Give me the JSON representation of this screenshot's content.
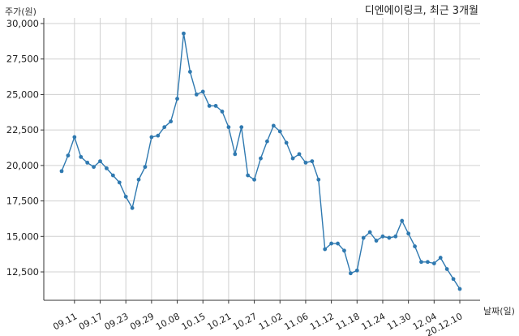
{
  "chart_data": {
    "type": "line",
    "title": "디엔에이링크, 최근 3개월",
    "ylabel": "주가(원)",
    "xlabel": "날짜(일)",
    "ylim": [
      10500,
      30000
    ],
    "yticks": [
      12500,
      15000,
      17500,
      20000,
      22500,
      25000,
      27500,
      30000
    ],
    "ytick_labels": [
      "12,500",
      "15,000",
      "17,500",
      "20,000",
      "22,500",
      "25,000",
      "27,500",
      "30,000"
    ],
    "xticks": [
      {
        "index": 2,
        "label": "09.11"
      },
      {
        "index": 6,
        "label": "09.17"
      },
      {
        "index": 10,
        "label": "09.23"
      },
      {
        "index": 14,
        "label": "09.29"
      },
      {
        "index": 18,
        "label": "10.08"
      },
      {
        "index": 22,
        "label": "10.15"
      },
      {
        "index": 26,
        "label": "10.21"
      },
      {
        "index": 30,
        "label": "10.27"
      },
      {
        "index": 34,
        "label": "11.02"
      },
      {
        "index": 38,
        "label": "11.06"
      },
      {
        "index": 42,
        "label": "11.12"
      },
      {
        "index": 46,
        "label": "11.18"
      },
      {
        "index": 50,
        "label": "11.24"
      },
      {
        "index": 54,
        "label": "11.30"
      },
      {
        "index": 58,
        "label": "12.04"
      },
      {
        "index": 62,
        "label": "20.12.10"
      }
    ],
    "grid": true,
    "series": [
      {
        "color": "#2f79b0",
        "values": [
          19600,
          20700,
          22000,
          20600,
          20200,
          19900,
          20300,
          19800,
          19300,
          18800,
          17800,
          17000,
          19000,
          19900,
          22000,
          22100,
          22700,
          23100,
          24700,
          29300,
          26600,
          25000,
          25200,
          24200,
          24200,
          23800,
          22700,
          20800,
          22700,
          19300,
          19000,
          20500,
          21700,
          22800,
          22400,
          21600,
          20500,
          20800,
          20200,
          20300,
          19000,
          14100,
          14500,
          14500,
          14000,
          12400,
          12600,
          14900,
          15300,
          14700,
          15000,
          14900,
          15000,
          16100,
          15200,
          14300,
          13200,
          13200,
          13100,
          13500,
          12700,
          12000,
          11300
        ]
      }
    ]
  }
}
